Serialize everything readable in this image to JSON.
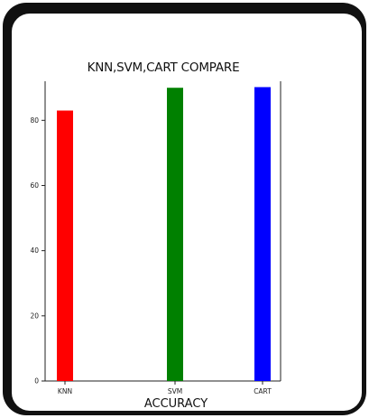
{
  "chart_data": {
    "type": "bar",
    "title": "KNN,SVM,CART COMPARE",
    "xlabel": "ACCURACY",
    "ylabel": "",
    "categories": [
      "KNN",
      "SVM",
      "CART"
    ],
    "values": [
      83,
      90,
      90.2
    ],
    "colors": [
      "#ff0000",
      "#008000",
      "#0000ff"
    ],
    "ylim": [
      0,
      92
    ],
    "yticks": [
      0,
      20,
      40,
      60,
      80
    ],
    "ytick_labels": [
      "0",
      "20",
      "40",
      "60",
      "80"
    ],
    "grid": false,
    "legend": "none"
  }
}
